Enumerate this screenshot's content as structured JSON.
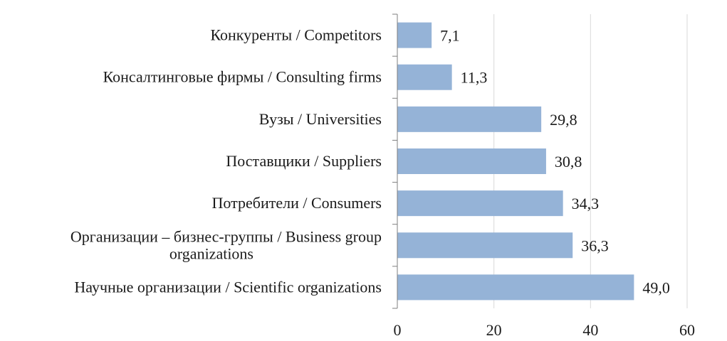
{
  "chart_data": {
    "type": "bar",
    "orientation": "horizontal",
    "title": "",
    "xlabel": "",
    "ylabel": "",
    "categories": [
      [
        "Конкуренты / Competitors"
      ],
      [
        "Консалтинговые фирмы / Consulting firms"
      ],
      [
        "Вузы / Universities"
      ],
      [
        "Поставщики / Suppliers"
      ],
      [
        "Потребители / Consumers"
      ],
      [
        "Организации – бизнес-группы / Business group",
        "organizations"
      ],
      [
        "Научные организации / Scientific organizations"
      ]
    ],
    "values": [
      7.1,
      11.3,
      29.8,
      30.8,
      34.3,
      36.3,
      49.0
    ],
    "value_labels": [
      "7,1",
      "11,3",
      "29,8",
      "30,8",
      "34,3",
      "36,3",
      "49,0"
    ],
    "xlim": [
      0,
      60
    ],
    "xticks": [
      0,
      20,
      40,
      60
    ],
    "xtick_labels": [
      "0",
      "20",
      "40",
      "60"
    ],
    "grid": "vertical",
    "legend": "none",
    "colors": {
      "bar": "#95b3d7",
      "grid": "#d9d9d9",
      "axis": "#7f7f7f",
      "text": "#1a1a1a"
    }
  }
}
